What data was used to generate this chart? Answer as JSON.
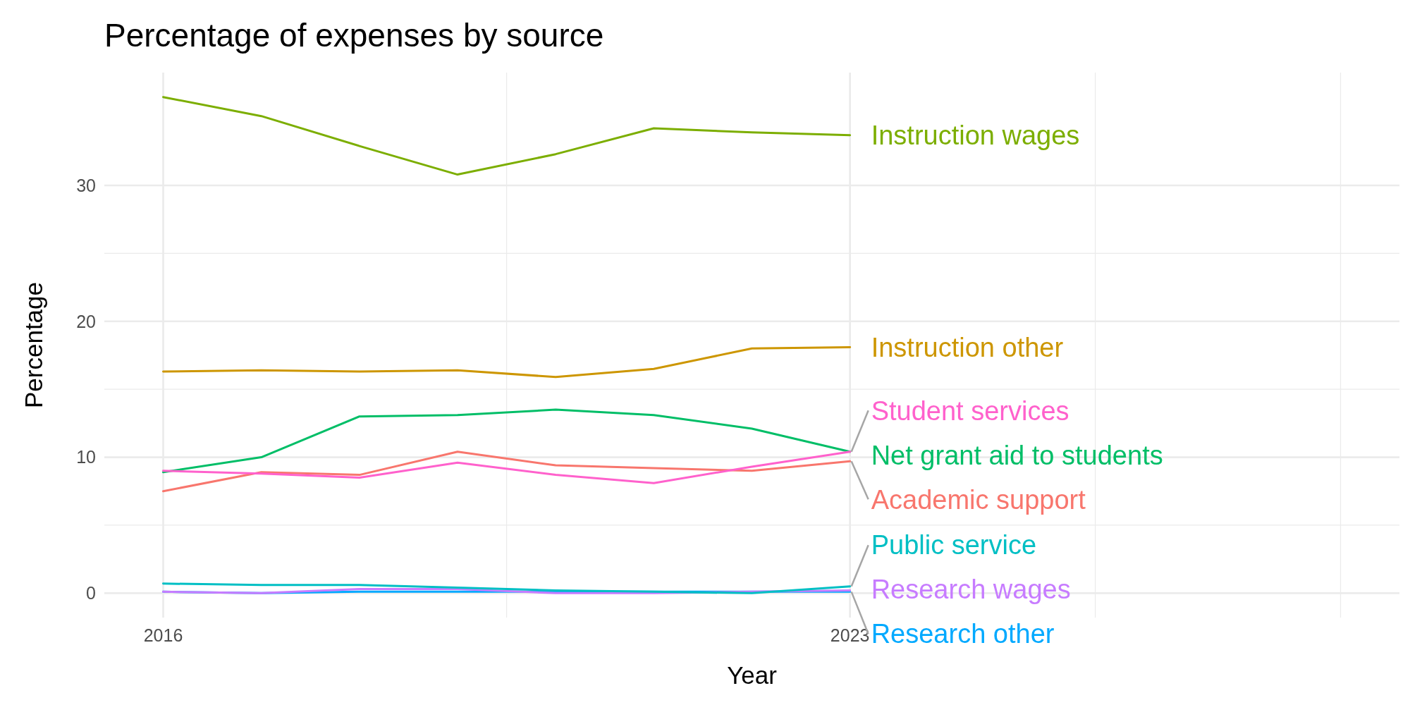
{
  "chart_data": {
    "type": "line",
    "title": "Percentage of expenses by source",
    "xlabel": "Year",
    "ylabel": "Percentage",
    "x": [
      2016,
      2017,
      2018,
      2019,
      2020,
      2021,
      2022,
      2023
    ],
    "xlim": [
      2015.4,
      2028.6
    ],
    "xticks": [
      2016,
      {
        "value": 2019.5,
        "label": null
      },
      2023,
      {
        "value": 2025.5,
        "label": null
      },
      {
        "value": 2028,
        "label": null
      }
    ],
    "ylim": [
      -1.8,
      38.3
    ],
    "yticks": [
      0,
      10,
      20,
      30
    ],
    "grid": true,
    "series": [
      {
        "name": "Instruction wages",
        "color": "#7cae00",
        "values": [
          36.5,
          35.1,
          32.9,
          30.8,
          32.3,
          34.2,
          33.9,
          33.7
        ]
      },
      {
        "name": "Instruction other",
        "color": "#cd9600",
        "values": [
          16.3,
          16.4,
          16.3,
          16.4,
          15.9,
          16.5,
          18.0,
          18.1
        ]
      },
      {
        "name": "Student services",
        "color": "#ff61cc",
        "values": [
          9.0,
          8.8,
          8.5,
          9.6,
          8.7,
          8.1,
          9.3,
          10.4
        ]
      },
      {
        "name": "Net grant aid to students",
        "color": "#00be67",
        "values": [
          8.9,
          10.0,
          13.0,
          13.1,
          13.5,
          13.1,
          12.1,
          10.4
        ]
      },
      {
        "name": "Academic support",
        "color": "#f8766d",
        "values": [
          7.5,
          8.9,
          8.7,
          10.4,
          9.4,
          9.2,
          9.0,
          9.7
        ]
      },
      {
        "name": "Public service",
        "color": "#00bfc4",
        "values": [
          0.7,
          0.6,
          0.6,
          0.4,
          0.2,
          0.1,
          0.0,
          0.5
        ]
      },
      {
        "name": "Research wages",
        "color": "#c77cff",
        "values": [
          0.1,
          0.0,
          0.3,
          0.3,
          0.0,
          0.0,
          0.1,
          0.2
        ]
      },
      {
        "name": "Research other",
        "color": "#00a9ff",
        "values": [
          0.1,
          0.0,
          0.1,
          0.1,
          0.1,
          0.1,
          0.1,
          0.1
        ]
      }
    ]
  }
}
